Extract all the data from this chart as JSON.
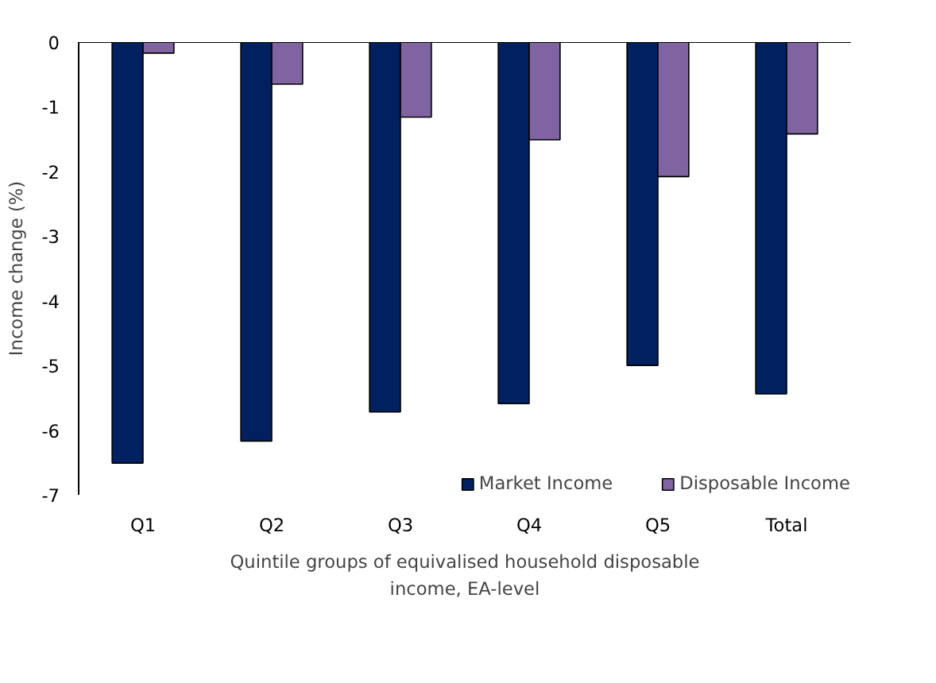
{
  "chart_data": {
    "type": "bar",
    "categories": [
      "Q1",
      "Q2",
      "Q3",
      "Q4",
      "Q5",
      "Total"
    ],
    "series": [
      {
        "name": "Market Income",
        "color": "#002060",
        "values": [
          -6.51,
          -6.17,
          -5.72,
          -5.59,
          -5.0,
          -5.44
        ]
      },
      {
        "name": "Disposable Income",
        "color": "#8064a2",
        "values": [
          -0.17,
          -0.65,
          -1.16,
          -1.51,
          -2.08,
          -1.42
        ]
      }
    ],
    "xlabel": "Quintile groups of equivalised household disposable income, EA-level",
    "ylabel": "Income change (%)",
    "ylim": [
      -7,
      0
    ],
    "yticks": [
      -7,
      -6,
      -5,
      -4,
      -3,
      -2,
      -1,
      0
    ],
    "grid": false,
    "legend": "bottom right"
  }
}
